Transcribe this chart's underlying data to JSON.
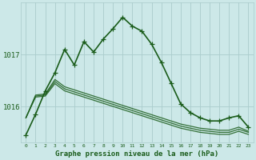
{
  "title": "Graphe pression niveau de la mer (hPa)",
  "background_color": "#cce8e8",
  "grid_color": "#aacccc",
  "line_color": "#1a5c1a",
  "text_color": "#1a5c1a",
  "yticks": [
    1016,
    1017
  ],
  "xticks": [
    0,
    1,
    2,
    3,
    4,
    5,
    6,
    7,
    8,
    9,
    10,
    11,
    12,
    13,
    14,
    15,
    16,
    17,
    18,
    19,
    20,
    21,
    22,
    23
  ],
  "ylim": [
    1015.3,
    1018.0
  ],
  "xlim": [
    -0.5,
    23.5
  ],
  "series_main": [
    1015.45,
    1015.85,
    1016.3,
    1016.65,
    1017.1,
    1016.8,
    1017.25,
    1017.05,
    1017.3,
    1017.5,
    1017.72,
    1017.55,
    1017.45,
    1017.2,
    1016.85,
    1016.45,
    1016.05,
    1015.88,
    1015.78,
    1015.72,
    1015.72,
    1015.78,
    1015.82,
    1015.6
  ],
  "series_flat": [
    [
      1015.78,
      1016.22,
      1016.24,
      1016.52,
      1016.38,
      1016.32,
      1016.26,
      1016.2,
      1016.14,
      1016.08,
      1016.02,
      1015.96,
      1015.9,
      1015.84,
      1015.78,
      1015.72,
      1015.66,
      1015.62,
      1015.58,
      1015.56,
      1015.54,
      1015.54,
      1015.6,
      1015.52
    ],
    [
      1015.78,
      1016.2,
      1016.22,
      1016.48,
      1016.34,
      1016.28,
      1016.22,
      1016.16,
      1016.1,
      1016.04,
      1015.98,
      1015.92,
      1015.86,
      1015.8,
      1015.74,
      1015.68,
      1015.62,
      1015.58,
      1015.54,
      1015.52,
      1015.5,
      1015.5,
      1015.56,
      1015.5
    ],
    [
      1015.78,
      1016.18,
      1016.2,
      1016.44,
      1016.3,
      1016.24,
      1016.18,
      1016.12,
      1016.06,
      1016.0,
      1015.94,
      1015.88,
      1015.82,
      1015.76,
      1015.7,
      1015.64,
      1015.58,
      1015.54,
      1015.5,
      1015.48,
      1015.46,
      1015.46,
      1015.52,
      1015.46
    ]
  ],
  "marker": "+",
  "markersize": 4,
  "linewidth_main": 1.2,
  "linewidth_flat": 0.9
}
